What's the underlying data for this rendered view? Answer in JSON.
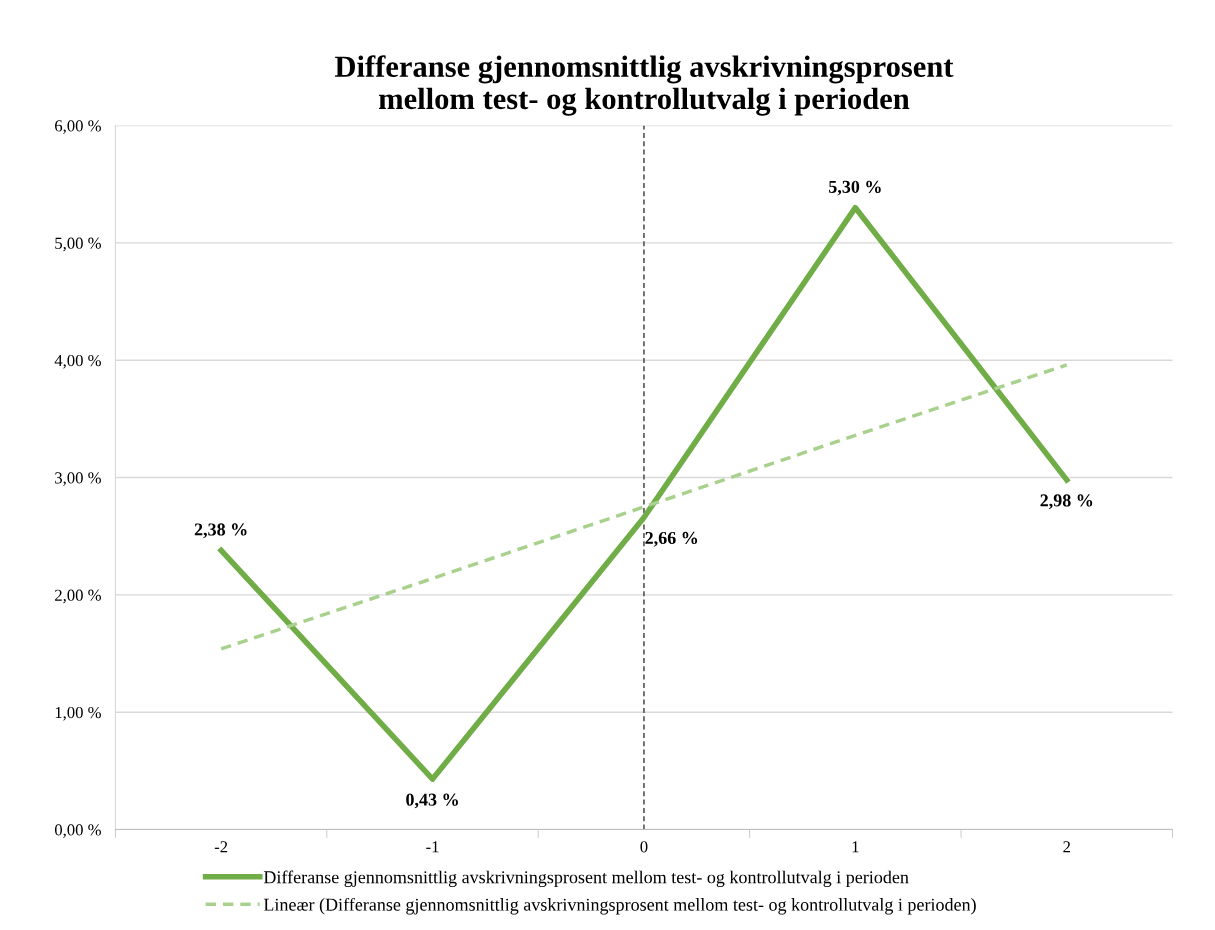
{
  "chart_data": {
    "type": "line",
    "title": "Differanse gjennomsnittlig avskrivningsprosent\nmellom test- og kontrollutvalg i perioden",
    "categories": [
      "-2",
      "-1",
      "0",
      "1",
      "2"
    ],
    "series": [
      {
        "name": "Differanse gjennomsnittlig avskrivningsprosent mellom test- og kontrollutvalg i perioden",
        "color": "#70ad47",
        "values": [
          2.38,
          0.43,
          2.66,
          5.3,
          2.98
        ],
        "value_labels": [
          "2,38 %",
          "0,43 %",
          "2,66 %",
          "5,30 %",
          "2,98 %"
        ],
        "line_style": "solid"
      },
      {
        "name": "Lineær (Differanse gjennomsnittlig avskrivningsprosent mellom test- og kontrollutvalg i perioden)",
        "color": "#a9d18e",
        "values": [
          1.54,
          2.14,
          2.75,
          3.36,
          3.96
        ],
        "line_style": "dashed"
      }
    ],
    "ylim": [
      0,
      6
    ],
    "yticks": [
      {
        "value": 0,
        "label": "0,00 %"
      },
      {
        "value": 1,
        "label": "1,00 %"
      },
      {
        "value": 2,
        "label": "2,00 %"
      },
      {
        "value": 3,
        "label": "3,00 %"
      },
      {
        "value": 4,
        "label": "4,00 %"
      },
      {
        "value": 5,
        "label": "5,00 %"
      },
      {
        "value": 6,
        "label": "6,00 %"
      }
    ],
    "ref_lines": [
      {
        "axis": "x",
        "value": "0",
        "color": "#595959",
        "line_style": "dashed"
      }
    ],
    "grid": "y",
    "legend": "bottom",
    "marker": "none"
  }
}
